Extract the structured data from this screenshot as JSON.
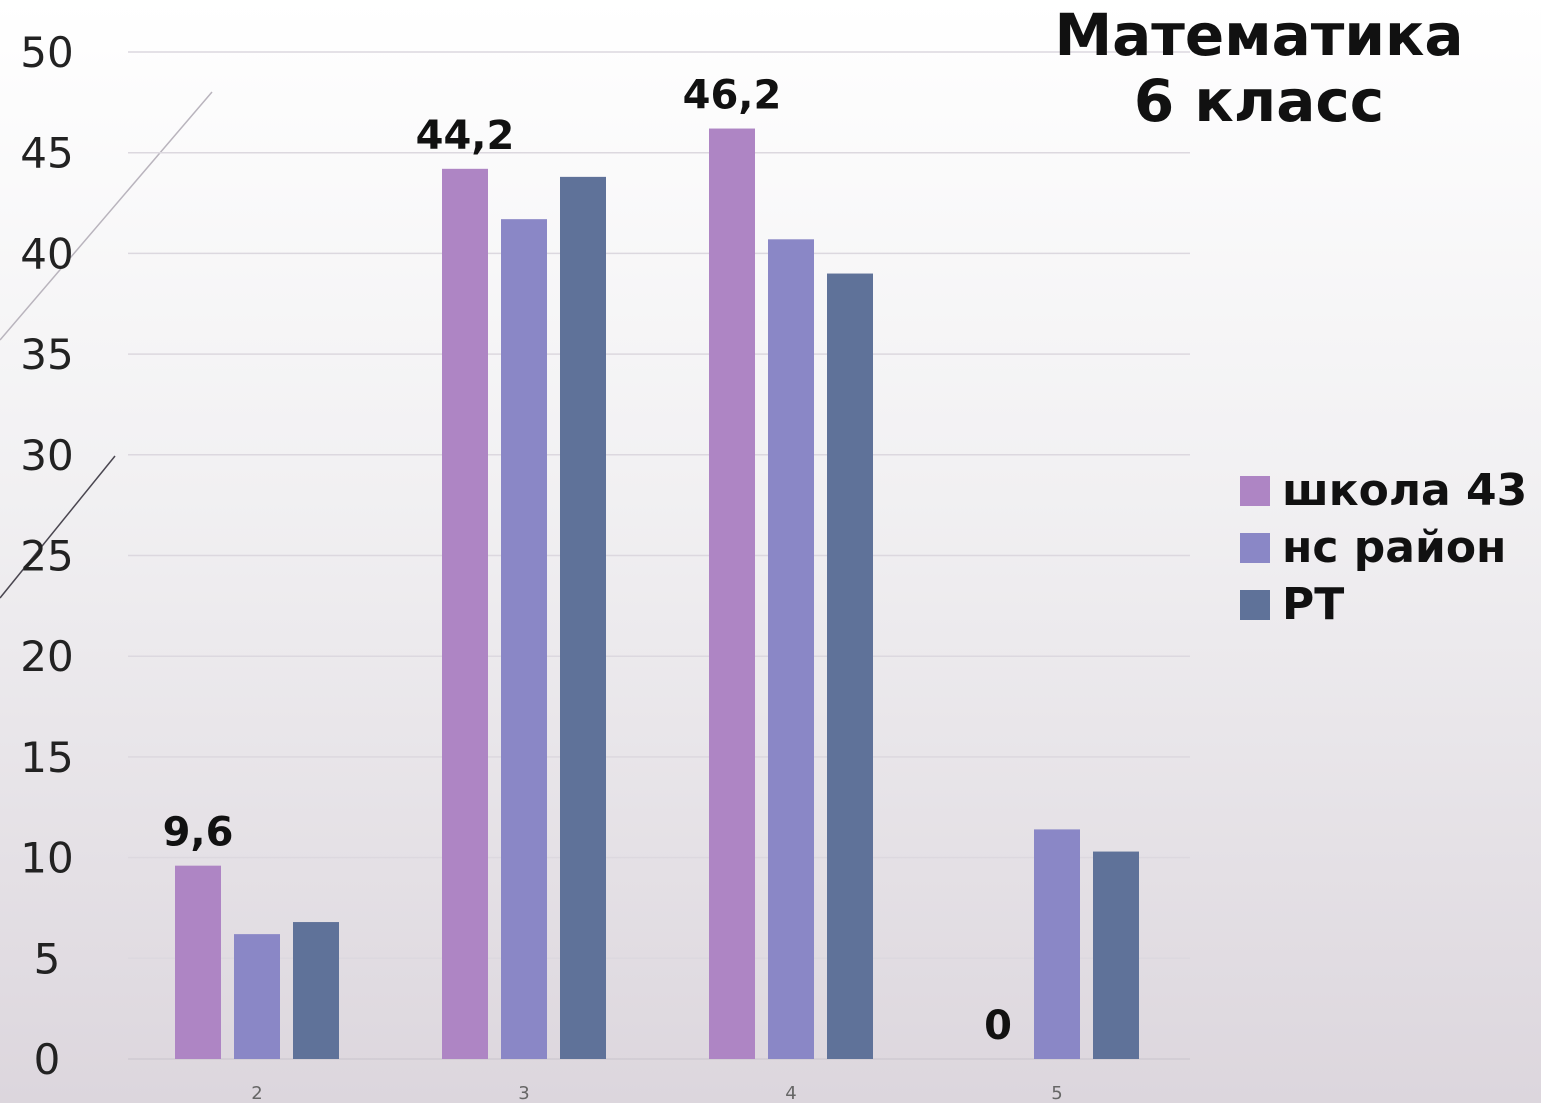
{
  "chart_data": {
    "type": "bar",
    "title": [
      "Математика",
      "6 класс"
    ],
    "categories": [
      "2",
      "3",
      "4",
      "5"
    ],
    "ylim": [
      0,
      50
    ],
    "yticks": [
      0,
      5,
      10,
      15,
      20,
      25,
      30,
      35,
      40,
      45,
      50
    ],
    "grid": true,
    "legend_position": "right",
    "series": [
      {
        "name": "школа 43",
        "color": "#ae85c4",
        "values": [
          9.6,
          44.2,
          46.2,
          0
        ]
      },
      {
        "name": "нс район",
        "color": "#8a87c6",
        "values": [
          6.2,
          41.7,
          40.7,
          11.4
        ]
      },
      {
        "name": "РТ",
        "color": "#5f7299",
        "values": [
          6.8,
          43.8,
          39.0,
          10.3
        ]
      }
    ],
    "data_labels": [
      {
        "series": 0,
        "category": 0,
        "text": "9,6"
      },
      {
        "series": 0,
        "category": 1,
        "text": "44,2"
      },
      {
        "series": 0,
        "category": 2,
        "text": "46,2"
      },
      {
        "series": 0,
        "category": 3,
        "text": "0"
      }
    ]
  }
}
